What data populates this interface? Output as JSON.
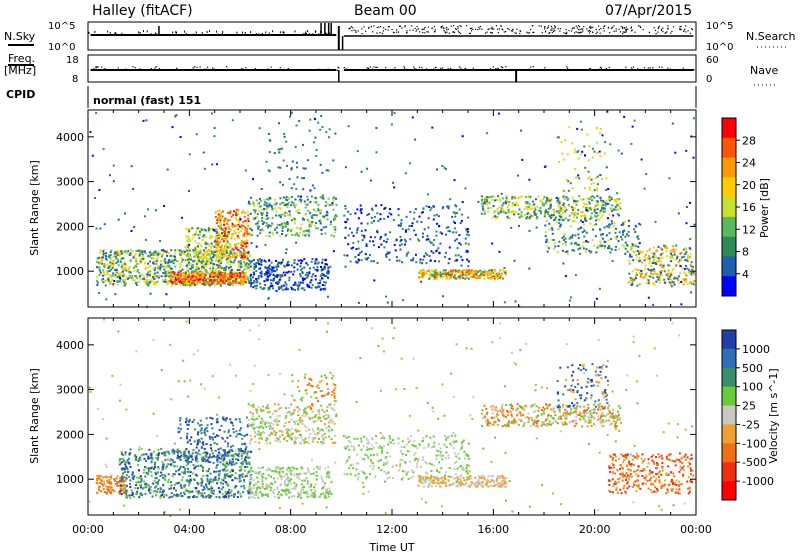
{
  "header": {
    "station": "Halley (fitACF)",
    "beam": "Beam 00",
    "date": "07/Apr/2015"
  },
  "top_panels": {
    "nsky_label": "N.Sky",
    "nsearch_label": "N.Search",
    "nsky_ticks": [
      "10^5",
      "10^0"
    ],
    "nsearch_ticks": [
      "10^5",
      "10^0"
    ],
    "freq_label": "Freq.",
    "freq_unit": "[MHz]",
    "freq_ticks": [
      "18",
      "8"
    ],
    "nave_label": "Nave",
    "nave_ticks": [
      "60",
      "0"
    ],
    "cpid_label": "CPID",
    "cpid_text": "normal (fast) 151"
  },
  "chart_data": [
    {
      "type": "heatmap",
      "ylabel": "Slant Range [km]",
      "ylim": [
        200,
        4600
      ],
      "yticks": [
        "1000",
        "2000",
        "3000",
        "4000"
      ],
      "xticks": [
        "00:00",
        "04:00",
        "08:00",
        "12:00",
        "16:00",
        "20:00",
        "00:00"
      ],
      "xlim_hours": [
        0,
        24
      ],
      "colorbar_label": "Power [dB]",
      "colorbar_ticks": [
        "28",
        "24",
        "20",
        "16",
        "12",
        "8",
        "4"
      ],
      "colorbar_colors": [
        "#ff0000",
        "#ff5500",
        "#ff9900",
        "#ffcc00",
        "#c8e030",
        "#5cb85c",
        "#2e8b57",
        "#1e5fb0",
        "#0000ff"
      ]
    },
    {
      "type": "heatmap",
      "ylabel": "Slant Range [km]",
      "ylim": [
        200,
        4600
      ],
      "yticks": [
        "1000",
        "2000",
        "3000",
        "4000"
      ],
      "xticks": [
        "00:00",
        "04:00",
        "08:00",
        "12:00",
        "16:00",
        "20:00",
        "00:00"
      ],
      "xlabel": "Time UT",
      "xlim_hours": [
        0,
        24
      ],
      "colorbar_label": "Velocity [m s^-1]",
      "colorbar_ticks": [
        "1000",
        "500",
        "100",
        "25",
        "-25",
        "-100",
        "-500",
        "-1000"
      ],
      "colorbar_colors": [
        "#1f3fa8",
        "#2e6fb8",
        "#3a8f6a",
        "#6acb3a",
        "#c8c8c0",
        "#f0a030",
        "#f07010",
        "#f03010",
        "#ff0000"
      ]
    }
  ]
}
